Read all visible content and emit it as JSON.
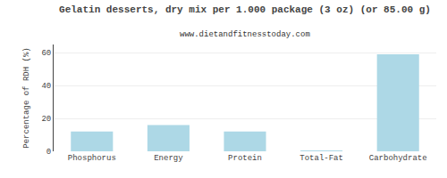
{
  "chart_data": {
    "type": "bar",
    "title": "Gelatin desserts, dry mix per 1.000 package (3 oz) (or 85.00 g)",
    "subtitle": "www.dietandfitnesstoday.com",
    "categories": [
      "Phosphorus",
      "Energy",
      "Protein",
      "Total-Fat",
      "Carbohydrate"
    ],
    "values": [
      12,
      16,
      12,
      0.5,
      59
    ],
    "color": "#add8e6",
    "ylabel": "Percentage of RDH (%)",
    "ylim": [
      0,
      65
    ],
    "yticks": [
      0,
      20,
      40,
      60
    ],
    "grid": true
  }
}
